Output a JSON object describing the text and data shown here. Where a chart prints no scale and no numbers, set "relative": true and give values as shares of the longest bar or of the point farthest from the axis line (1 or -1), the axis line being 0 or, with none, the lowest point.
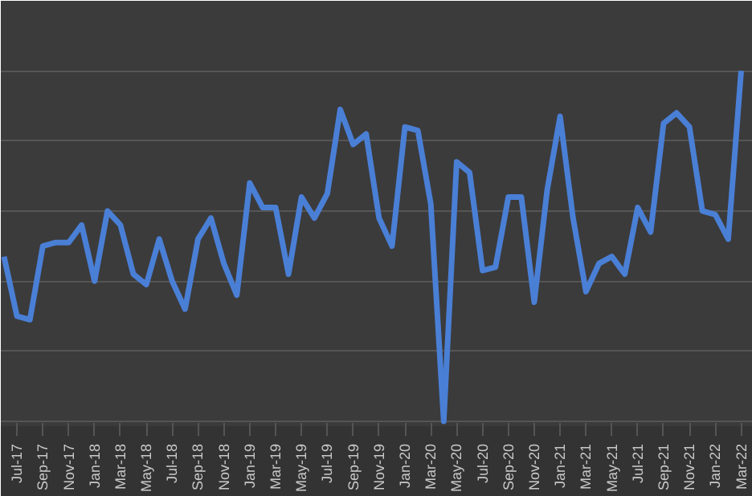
{
  "chart_data": {
    "type": "line",
    "relative": true,
    "grid": "y",
    "categories": [
      null,
      "Jul-17",
      null,
      "Sep-17",
      null,
      "Nov-17",
      null,
      "Jan-18",
      null,
      "Mar-18",
      null,
      "May-18",
      null,
      "Jul-18",
      null,
      "Sep-18",
      null,
      "Nov-18",
      null,
      "Jan-19",
      null,
      "Mar-19",
      null,
      "May-19",
      null,
      "Jul-19",
      null,
      "Sep-19",
      null,
      "Nov-19",
      null,
      "Jan-20",
      null,
      "Mar-20",
      null,
      "May-20",
      null,
      "Jul-20",
      null,
      "Sep-20",
      null,
      "Nov-20",
      null,
      "Jan-21",
      null,
      "Mar-21",
      null,
      "May-21",
      null,
      "Jul-21",
      null,
      "Sep-21",
      null,
      "Nov-21",
      null,
      "Jan-22",
      null,
      "Mar-22"
    ],
    "series": [
      {
        "color": "#4a7fd6",
        "values": [
          0.47,
          0.3,
          0.29,
          0.5,
          0.51,
          0.51,
          0.56,
          0.4,
          0.6,
          0.56,
          0.42,
          0.39,
          0.52,
          0.4,
          0.32,
          0.52,
          0.58,
          0.45,
          0.36,
          0.68,
          0.61,
          0.61,
          0.42,
          0.64,
          0.58,
          0.65,
          0.89,
          0.79,
          0.82,
          0.58,
          0.5,
          0.84,
          0.83,
          0.62,
          0,
          0.74,
          0.71,
          0.43,
          0.44,
          0.64,
          0.64,
          0.34,
          0.66,
          0.87,
          0.58,
          0.37,
          0.45,
          0.47,
          0.42,
          0.61,
          0.54,
          0.85,
          0.88,
          0.84,
          0.6,
          0.59,
          0.52,
          1
        ]
      }
    ]
  }
}
